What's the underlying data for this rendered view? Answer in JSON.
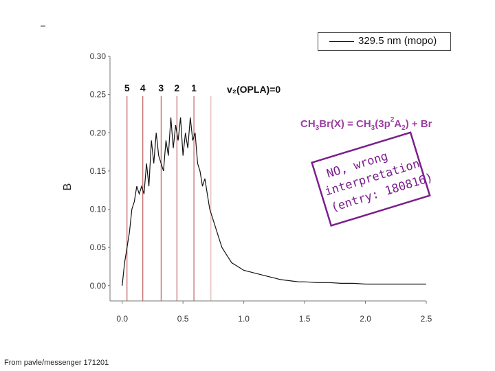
{
  "footer_text": "From pavle/messenger 171201",
  "legend": {
    "label": "329.5 nm (mopo)"
  },
  "annotations": {
    "v2_label": "v₂(OPLA)=0",
    "reaction_parts": [
      "CH",
      "3",
      "Br(X) = CH",
      "3",
      "(3p",
      "2",
      "A",
      "2",
      ") + Br"
    ],
    "note_lines": [
      "NO, wrong",
      "interpretation",
      "(entry: 180816)"
    ]
  },
  "colors": {
    "trace": "#111111",
    "markers": "#b24040",
    "reaction": "#9b3fa0",
    "note": "#7a1e8c"
  },
  "chart_data": {
    "type": "line",
    "ylabel": "B",
    "xlim": [
      -0.1,
      2.5
    ],
    "ylim": [
      -0.02,
      0.3
    ],
    "xticks": [
      "0.0",
      "0.5",
      "1.0",
      "1.5",
      "2.0",
      "2.5"
    ],
    "yticks": [
      "0.00",
      "0.05",
      "0.10",
      "0.15",
      "0.20",
      "0.25",
      "0.30"
    ],
    "markers": [
      {
        "label": "5",
        "x": 0.04
      },
      {
        "label": "4",
        "x": 0.17
      },
      {
        "label": "3",
        "x": 0.32
      },
      {
        "label": "2",
        "x": 0.45
      },
      {
        "label": "1",
        "x": 0.59
      },
      {
        "label": "",
        "x": 0.73
      }
    ],
    "series": [
      {
        "x": [
          0.0,
          0.02,
          0.04,
          0.06,
          0.08,
          0.1,
          0.12,
          0.14,
          0.16,
          0.18,
          0.2,
          0.22,
          0.24,
          0.26,
          0.28,
          0.3,
          0.32,
          0.34,
          0.36,
          0.38,
          0.4,
          0.42,
          0.44,
          0.46,
          0.48,
          0.5,
          0.52,
          0.54,
          0.56,
          0.58,
          0.6,
          0.62,
          0.64,
          0.66,
          0.68,
          0.7,
          0.72,
          0.74,
          0.76,
          0.78,
          0.8,
          0.82,
          0.84,
          0.86,
          0.88,
          0.9,
          0.95,
          1.0,
          1.05,
          1.1,
          1.15,
          1.2,
          1.25,
          1.3,
          1.35,
          1.4,
          1.45,
          1.5,
          1.6,
          1.7,
          1.8,
          1.9,
          2.0,
          2.1,
          2.2,
          2.3,
          2.4,
          2.5
        ],
        "y": [
          0.0,
          0.03,
          0.05,
          0.07,
          0.1,
          0.11,
          0.13,
          0.12,
          0.13,
          0.12,
          0.16,
          0.13,
          0.19,
          0.16,
          0.2,
          0.17,
          0.16,
          0.15,
          0.19,
          0.17,
          0.22,
          0.18,
          0.21,
          0.19,
          0.22,
          0.17,
          0.2,
          0.18,
          0.22,
          0.19,
          0.2,
          0.16,
          0.15,
          0.13,
          0.14,
          0.12,
          0.1,
          0.09,
          0.08,
          0.07,
          0.06,
          0.05,
          0.045,
          0.04,
          0.035,
          0.03,
          0.025,
          0.02,
          0.018,
          0.016,
          0.014,
          0.012,
          0.01,
          0.008,
          0.007,
          0.006,
          0.005,
          0.005,
          0.004,
          0.004,
          0.003,
          0.003,
          0.002,
          0.002,
          0.002,
          0.002,
          0.002,
          0.002
        ]
      }
    ]
  }
}
